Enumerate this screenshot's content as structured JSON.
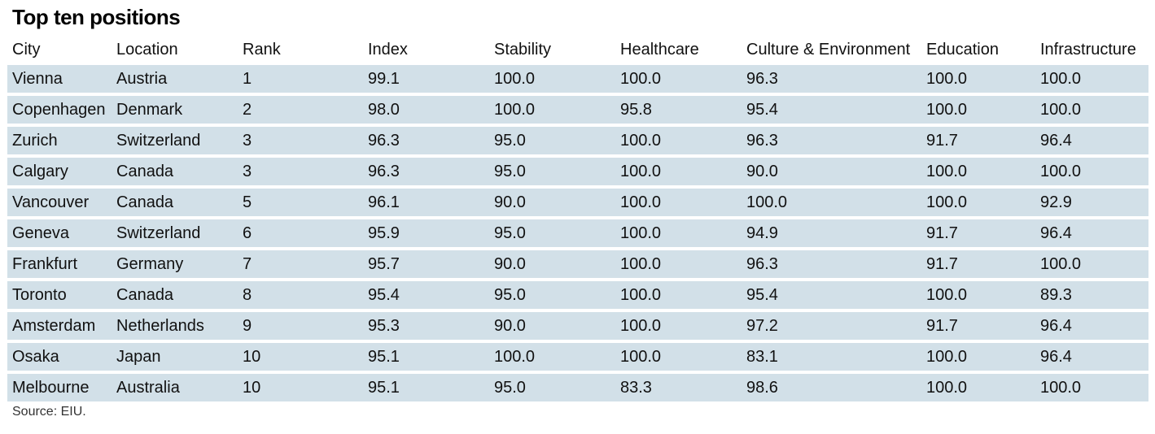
{
  "title": "Top ten positions",
  "source": "Source: EIU.",
  "chart_data": {
    "type": "table",
    "title": "Top ten positions",
    "columns": [
      "City",
      "Location",
      "Rank",
      "Index",
      "Stability",
      "Healthcare",
      "Culture & Environment",
      "Education",
      "Infrastructure"
    ],
    "rows": [
      [
        "Vienna",
        "Austria",
        "1",
        "99.1",
        "100.0",
        "100.0",
        "96.3",
        "100.0",
        "100.0"
      ],
      [
        "Copenhagen",
        "Denmark",
        "2",
        "98.0",
        "100.0",
        "95.8",
        "95.4",
        "100.0",
        "100.0"
      ],
      [
        "Zurich",
        "Switzerland",
        "3",
        "96.3",
        "95.0",
        "100.0",
        "96.3",
        "91.7",
        "96.4"
      ],
      [
        "Calgary",
        "Canada",
        "3",
        "96.3",
        "95.0",
        "100.0",
        "90.0",
        "100.0",
        "100.0"
      ],
      [
        "Vancouver",
        "Canada",
        "5",
        "96.1",
        "90.0",
        "100.0",
        "100.0",
        "100.0",
        "92.9"
      ],
      [
        "Geneva",
        "Switzerland",
        "6",
        "95.9",
        "95.0",
        "100.0",
        "94.9",
        "91.7",
        "96.4"
      ],
      [
        "Frankfurt",
        "Germany",
        "7",
        "95.7",
        "90.0",
        "100.0",
        "96.3",
        "91.7",
        "100.0"
      ],
      [
        "Toronto",
        "Canada",
        "8",
        "95.4",
        "95.0",
        "100.0",
        "95.4",
        "100.0",
        "89.3"
      ],
      [
        "Amsterdam",
        "Netherlands",
        "9",
        "95.3",
        "90.0",
        "100.0",
        "97.2",
        "91.7",
        "96.4"
      ],
      [
        "Osaka",
        "Japan",
        "10",
        "95.1",
        "100.0",
        "100.0",
        "83.1",
        "100.0",
        "96.4"
      ],
      [
        "Melbourne",
        "Australia",
        "10",
        "95.1",
        "95.0",
        "83.3",
        "98.6",
        "100.0",
        "100.0"
      ]
    ],
    "colors": {
      "row_background": "#d2e0e8",
      "text": "#111111"
    }
  }
}
